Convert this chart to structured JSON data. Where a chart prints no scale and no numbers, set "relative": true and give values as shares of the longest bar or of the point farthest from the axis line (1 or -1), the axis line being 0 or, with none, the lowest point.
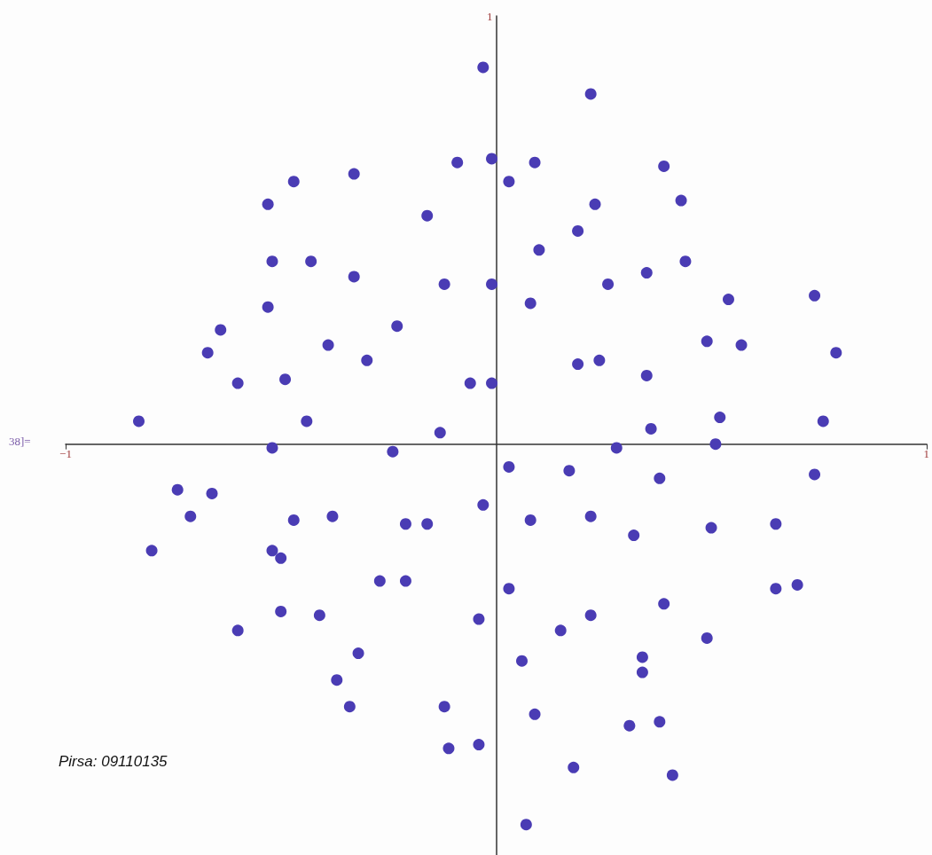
{
  "chart_data": {
    "type": "scatter",
    "relative": true,
    "xlim": [
      -1,
      1
    ],
    "xticks": [
      -1,
      1
    ],
    "marker": "circle",
    "annotations": [
      "1",
      "38]=",
      "Pirsa: 09110135"
    ],
    "series": [
      {
        "color": "#4a3cb4",
        "x": [
          -0.03,
          0.22,
          -0.09,
          -0.01,
          0.09,
          0.39,
          -0.33,
          -0.47,
          0.03,
          0.43,
          -0.53,
          0.23,
          -0.16,
          0.19,
          0.1,
          -0.52,
          -0.43,
          0.44,
          0.35,
          -0.33,
          -0.12,
          -0.01,
          0.26,
          0.54,
          0.74,
          0.08,
          -0.53,
          -0.23,
          -0.64,
          -0.39,
          0.49,
          0.57,
          -0.67,
          0.79,
          -0.3,
          0.19,
          0.24,
          0.35,
          -0.49,
          -0.6,
          -0.06,
          -0.01,
          -0.44,
          0.52,
          -0.83,
          0.76,
          0.36,
          -0.13,
          -0.52,
          0.51,
          0.28,
          -0.24,
          0.03,
          0.17,
          0.38,
          0.74,
          -0.74,
          -0.66,
          -0.71,
          -0.03,
          -0.47,
          -0.38,
          0.08,
          0.22,
          -0.21,
          -0.16,
          0.32,
          0.5,
          0.65,
          -0.8,
          -0.52,
          -0.5,
          -0.27,
          -0.21,
          0.65,
          0.7,
          0.03,
          0.39,
          -0.5,
          -0.41,
          0.22,
          -0.04,
          -0.6,
          0.15,
          0.49,
          -0.32,
          0.34,
          0.06,
          0.34,
          -0.37,
          -0.34,
          -0.12,
          0.09,
          0.31,
          0.38,
          -0.04,
          -0.11,
          0.18,
          0.41,
          0.07
        ],
        "values": [
          0.99,
          0.92,
          0.74,
          0.75,
          0.74,
          0.73,
          0.71,
          0.69,
          0.69,
          0.64,
          0.63,
          0.63,
          0.6,
          0.56,
          0.51,
          0.48,
          0.48,
          0.48,
          0.45,
          0.44,
          0.42,
          0.42,
          0.42,
          0.38,
          0.39,
          0.37,
          0.36,
          0.31,
          0.3,
          0.26,
          0.27,
          0.26,
          0.24,
          0.24,
          0.22,
          0.21,
          0.22,
          0.18,
          0.17,
          0.16,
          0.16,
          0.16,
          0.06,
          0.07,
          0.06,
          0.06,
          0.04,
          0.03,
          -0.01,
          0,
          -0.01,
          -0.02,
          -0.06,
          -0.07,
          -0.09,
          -0.08,
          -0.12,
          -0.13,
          -0.19,
          -0.16,
          -0.2,
          -0.19,
          -0.2,
          -0.19,
          -0.21,
          -0.21,
          -0.24,
          -0.22,
          -0.21,
          -0.28,
          -0.28,
          -0.3,
          -0.36,
          -0.36,
          -0.38,
          -0.37,
          -0.38,
          -0.42,
          -0.44,
          -0.45,
          -0.45,
          -0.46,
          -0.49,
          -0.49,
          -0.51,
          -0.55,
          -0.56,
          -0.57,
          -0.6,
          -0.62,
          -0.69,
          -0.69,
          -0.71,
          -0.74,
          -0.73,
          -0.79,
          -0.8,
          -0.85,
          -0.87,
          -1
        ]
      }
    ]
  }
}
